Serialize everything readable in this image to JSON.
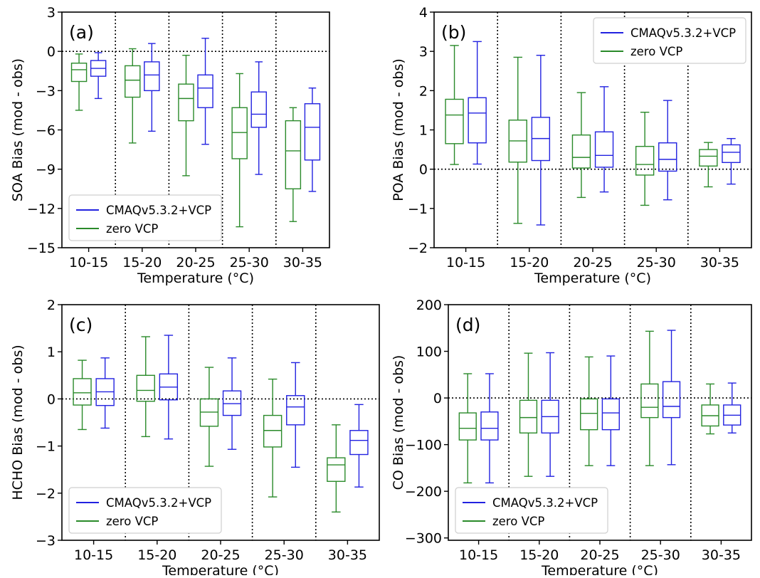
{
  "colors": {
    "vcp": "#2222e0",
    "zero": "#2a8a2a",
    "axis": "#000000",
    "zero_line": "#000000"
  },
  "chart_data": [
    {
      "panel_label": "(a)",
      "type": "box",
      "xlabel": "Temperature (°C)",
      "ylabel": "SOA Bias (mod - obs)",
      "categories": [
        "10-15",
        "15-20",
        "20-25",
        "25-30",
        "30-35"
      ],
      "ylim": [
        -15,
        3
      ],
      "yticks": [
        3,
        0,
        -3,
        -6,
        -9,
        -12,
        -15
      ],
      "ytick_labels": [
        "3",
        "0",
        "−3",
        "−6",
        "−9",
        "−12",
        "−15"
      ],
      "legend_position": "lower-left",
      "series": [
        {
          "name": "CMAQv5.3.2+VCP",
          "color_key": "vcp",
          "boxes": [
            {
              "whislo": -3.6,
              "q1": -1.9,
              "med": -1.3,
              "q3": -0.7,
              "whishi": -0.1
            },
            {
              "whislo": -6.1,
              "q1": -3.0,
              "med": -1.8,
              "q3": -0.8,
              "whishi": 0.6
            },
            {
              "whislo": -7.1,
              "q1": -4.3,
              "med": -2.8,
              "q3": -1.8,
              "whishi": 1.0
            },
            {
              "whislo": -9.4,
              "q1": -5.8,
              "med": -4.8,
              "q3": -3.1,
              "whishi": -0.8
            },
            {
              "whislo": -10.7,
              "q1": -8.3,
              "med": -5.8,
              "q3": -4.0,
              "whishi": -2.8
            }
          ]
        },
        {
          "name": "zero VCP",
          "color_key": "zero",
          "boxes": [
            {
              "whislo": -4.5,
              "q1": -2.3,
              "med": -1.4,
              "q3": -0.9,
              "whishi": -0.2
            },
            {
              "whislo": -7.0,
              "q1": -3.5,
              "med": -2.2,
              "q3": -1.1,
              "whishi": 0.2
            },
            {
              "whislo": -9.5,
              "q1": -5.3,
              "med": -3.6,
              "q3": -2.5,
              "whishi": -0.3
            },
            {
              "whislo": -13.4,
              "q1": -8.2,
              "med": -6.2,
              "q3": -4.3,
              "whishi": -1.7
            },
            {
              "whislo": -13.0,
              "q1": -10.5,
              "med": -7.6,
              "q3": -5.3,
              "whishi": -4.3
            }
          ]
        }
      ]
    },
    {
      "panel_label": "(b)",
      "type": "box",
      "xlabel": "Temperature (°C)",
      "ylabel": "POA Bias (mod - obs)",
      "categories": [
        "10-15",
        "15-20",
        "20-25",
        "25-30",
        "30-35"
      ],
      "ylim": [
        -2,
        4
      ],
      "yticks": [
        4,
        3,
        2,
        1,
        0,
        -1,
        -2
      ],
      "ytick_labels": [
        "4",
        "3",
        "2",
        "1",
        "0",
        "−1",
        "−2"
      ],
      "legend_position": "upper-right",
      "series": [
        {
          "name": "CMAQv5.3.2+VCP",
          "color_key": "vcp",
          "boxes": [
            {
              "whislo": 0.13,
              "q1": 0.67,
              "med": 1.43,
              "q3": 1.82,
              "whishi": 3.25
            },
            {
              "whislo": -1.42,
              "q1": 0.22,
              "med": 0.78,
              "q3": 1.32,
              "whishi": 2.9
            },
            {
              "whislo": -0.58,
              "q1": 0.05,
              "med": 0.35,
              "q3": 0.95,
              "whishi": 2.1
            },
            {
              "whislo": -0.78,
              "q1": -0.05,
              "med": 0.25,
              "q3": 0.67,
              "whishi": 1.75
            },
            {
              "whislo": -0.38,
              "q1": 0.17,
              "med": 0.43,
              "q3": 0.62,
              "whishi": 0.78
            }
          ]
        },
        {
          "name": "zero VCP",
          "color_key": "zero",
          "boxes": [
            {
              "whislo": 0.12,
              "q1": 0.65,
              "med": 1.38,
              "q3": 1.78,
              "whishi": 3.15
            },
            {
              "whislo": -1.38,
              "q1": 0.18,
              "med": 0.72,
              "q3": 1.25,
              "whishi": 2.85
            },
            {
              "whislo": -0.72,
              "q1": 0.03,
              "med": 0.3,
              "q3": 0.87,
              "whishi": 1.95
            },
            {
              "whislo": -0.92,
              "q1": -0.15,
              "med": 0.12,
              "q3": 0.58,
              "whishi": 1.45
            },
            {
              "whislo": -0.45,
              "q1": 0.08,
              "med": 0.33,
              "q3": 0.5,
              "whishi": 0.68
            }
          ]
        }
      ]
    },
    {
      "panel_label": "(c)",
      "type": "box",
      "xlabel": "Temperature (°C)",
      "ylabel": "HCHO Bias (mod - obs)",
      "categories": [
        "10-15",
        "15-20",
        "20-25",
        "25-30",
        "30-35"
      ],
      "ylim": [
        -3,
        2
      ],
      "yticks": [
        2,
        1,
        0,
        -1,
        -2,
        -3
      ],
      "ytick_labels": [
        "2",
        "1",
        "0",
        "−1",
        "−2",
        "−3"
      ],
      "legend_position": "lower-left",
      "series": [
        {
          "name": "CMAQv5.3.2+VCP",
          "color_key": "vcp",
          "boxes": [
            {
              "whislo": -0.62,
              "q1": -0.14,
              "med": 0.15,
              "q3": 0.43,
              "whishi": 0.87
            },
            {
              "whislo": -0.85,
              "q1": -0.02,
              "med": 0.25,
              "q3": 0.53,
              "whishi": 1.35
            },
            {
              "whislo": -1.07,
              "q1": -0.35,
              "med": -0.1,
              "q3": 0.17,
              "whishi": 0.87
            },
            {
              "whislo": -1.45,
              "q1": -0.55,
              "med": -0.17,
              "q3": 0.07,
              "whishi": 0.77
            },
            {
              "whislo": -1.87,
              "q1": -1.18,
              "med": -0.88,
              "q3": -0.67,
              "whishi": -0.12
            }
          ]
        },
        {
          "name": "zero VCP",
          "color_key": "zero",
          "boxes": [
            {
              "whislo": -0.65,
              "q1": -0.13,
              "med": 0.13,
              "q3": 0.43,
              "whishi": 0.82
            },
            {
              "whislo": -0.8,
              "q1": -0.05,
              "med": 0.18,
              "q3": 0.5,
              "whishi": 1.32
            },
            {
              "whislo": -1.43,
              "q1": -0.58,
              "med": -0.28,
              "q3": 0.0,
              "whishi": 0.67
            },
            {
              "whislo": -2.08,
              "q1": -1.02,
              "med": -0.67,
              "q3": -0.35,
              "whishi": 0.42
            },
            {
              "whislo": -2.4,
              "q1": -1.75,
              "med": -1.4,
              "q3": -1.25,
              "whishi": -0.55
            }
          ]
        }
      ]
    },
    {
      "panel_label": "(d)",
      "type": "box",
      "xlabel": "Temperature (°C)",
      "ylabel": "CO Bias (mod - obs)",
      "categories": [
        "10-15",
        "15-20",
        "20-25",
        "25-30",
        "30-35"
      ],
      "ylim": [
        -305,
        200
      ],
      "yticks": [
        200,
        100,
        0,
        -100,
        -200,
        -300
      ],
      "ytick_labels": [
        "200",
        "100",
        "0",
        "−100",
        "−200",
        "−300"
      ],
      "legend_position": "lower-left",
      "series": [
        {
          "name": "CMAQv5.3.2+VCP",
          "color_key": "vcp",
          "boxes": [
            {
              "whislo": -182,
              "q1": -90,
              "med": -65,
              "q3": -30,
              "whishi": 52
            },
            {
              "whislo": -168,
              "q1": -75,
              "med": -40,
              "q3": -5,
              "whishi": 97
            },
            {
              "whislo": -145,
              "q1": -68,
              "med": -32,
              "q3": -2,
              "whishi": 90
            },
            {
              "whislo": -143,
              "q1": -42,
              "med": -18,
              "q3": 35,
              "whishi": 145
            },
            {
              "whislo": -75,
              "q1": -58,
              "med": -37,
              "q3": -15,
              "whishi": 32
            }
          ]
        },
        {
          "name": "zero VCP",
          "color_key": "zero",
          "boxes": [
            {
              "whislo": -182,
              "q1": -90,
              "med": -65,
              "q3": -32,
              "whishi": 52
            },
            {
              "whislo": -168,
              "q1": -75,
              "med": -42,
              "q3": -5,
              "whishi": 96
            },
            {
              "whislo": -145,
              "q1": -68,
              "med": -33,
              "q3": -2,
              "whishi": 88
            },
            {
              "whislo": -145,
              "q1": -42,
              "med": -20,
              "q3": 30,
              "whishi": 143
            },
            {
              "whislo": -77,
              "q1": -60,
              "med": -38,
              "q3": -15,
              "whishi": 30
            }
          ]
        }
      ]
    }
  ]
}
